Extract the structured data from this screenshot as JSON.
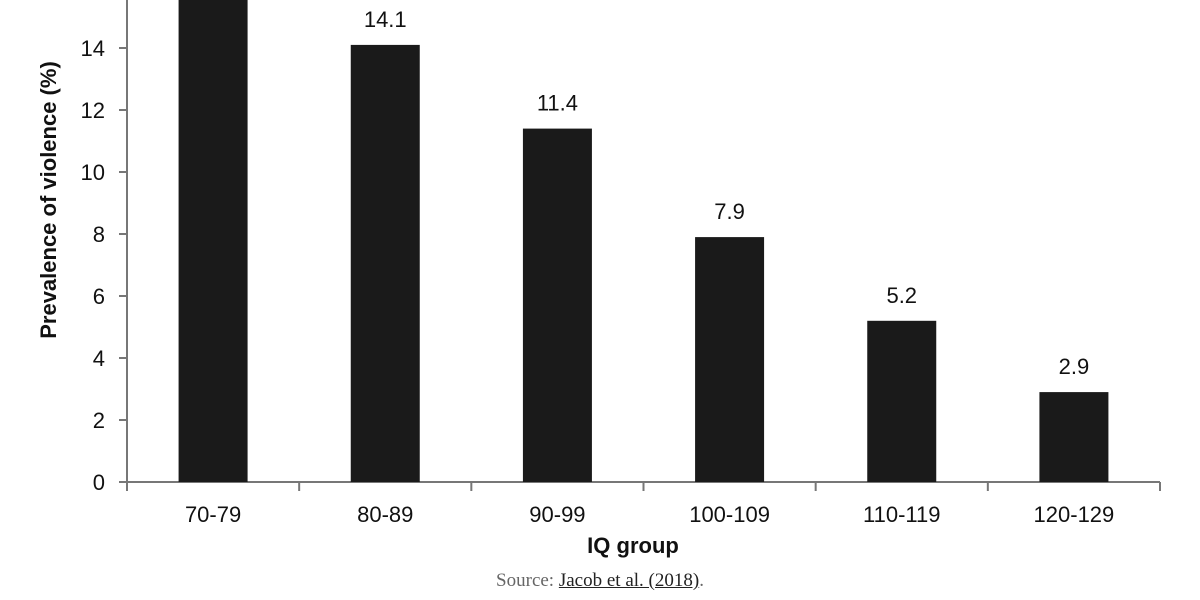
{
  "chart_data": {
    "type": "bar",
    "categories": [
      "70-79",
      "80-89",
      "90-99",
      "100-109",
      "110-119",
      "120-129"
    ],
    "values": [
      15.9,
      14.1,
      11.4,
      7.9,
      5.2,
      2.9
    ],
    "value_labels": [
      "",
      "14.1",
      "11.4",
      "7.9",
      "5.2",
      "2.9"
    ],
    "xlabel": "IQ group",
    "ylabel": "Prevalence of violence (%)",
    "yticks": [
      0,
      2,
      4,
      6,
      8,
      10,
      12,
      14
    ],
    "ylim": [
      0,
      16
    ],
    "grid": false,
    "bar_color": "#1a1a1a"
  },
  "source": {
    "prefix": "Source: ",
    "link_text": "Jacob et al. (2018)",
    "suffix": "."
  }
}
